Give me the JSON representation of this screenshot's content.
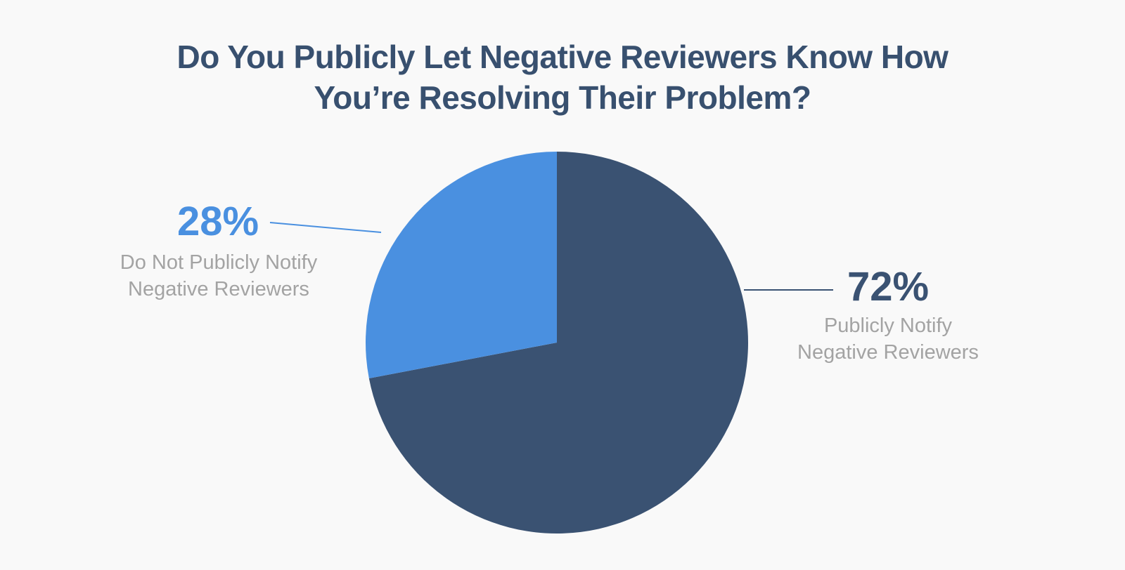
{
  "chart_data": {
    "type": "pie",
    "title": [
      "Do You Publicly Let Negative Reviewers Know How",
      "You’re Resolving Their Problem?"
    ],
    "slices": [
      {
        "label": [
          "Publicly Notify",
          "Negative Reviewers"
        ],
        "value": 72,
        "display": "72%",
        "color": "#3a5272"
      },
      {
        "label": [
          "Do Not Publicly Notify",
          "Negative Reviewers"
        ],
        "value": 28,
        "display": "28%",
        "color": "#4a90e0"
      }
    ]
  },
  "colors": {
    "background": "#f9f9f9",
    "title": "#38506f",
    "label_text": "#a3a3a3"
  }
}
